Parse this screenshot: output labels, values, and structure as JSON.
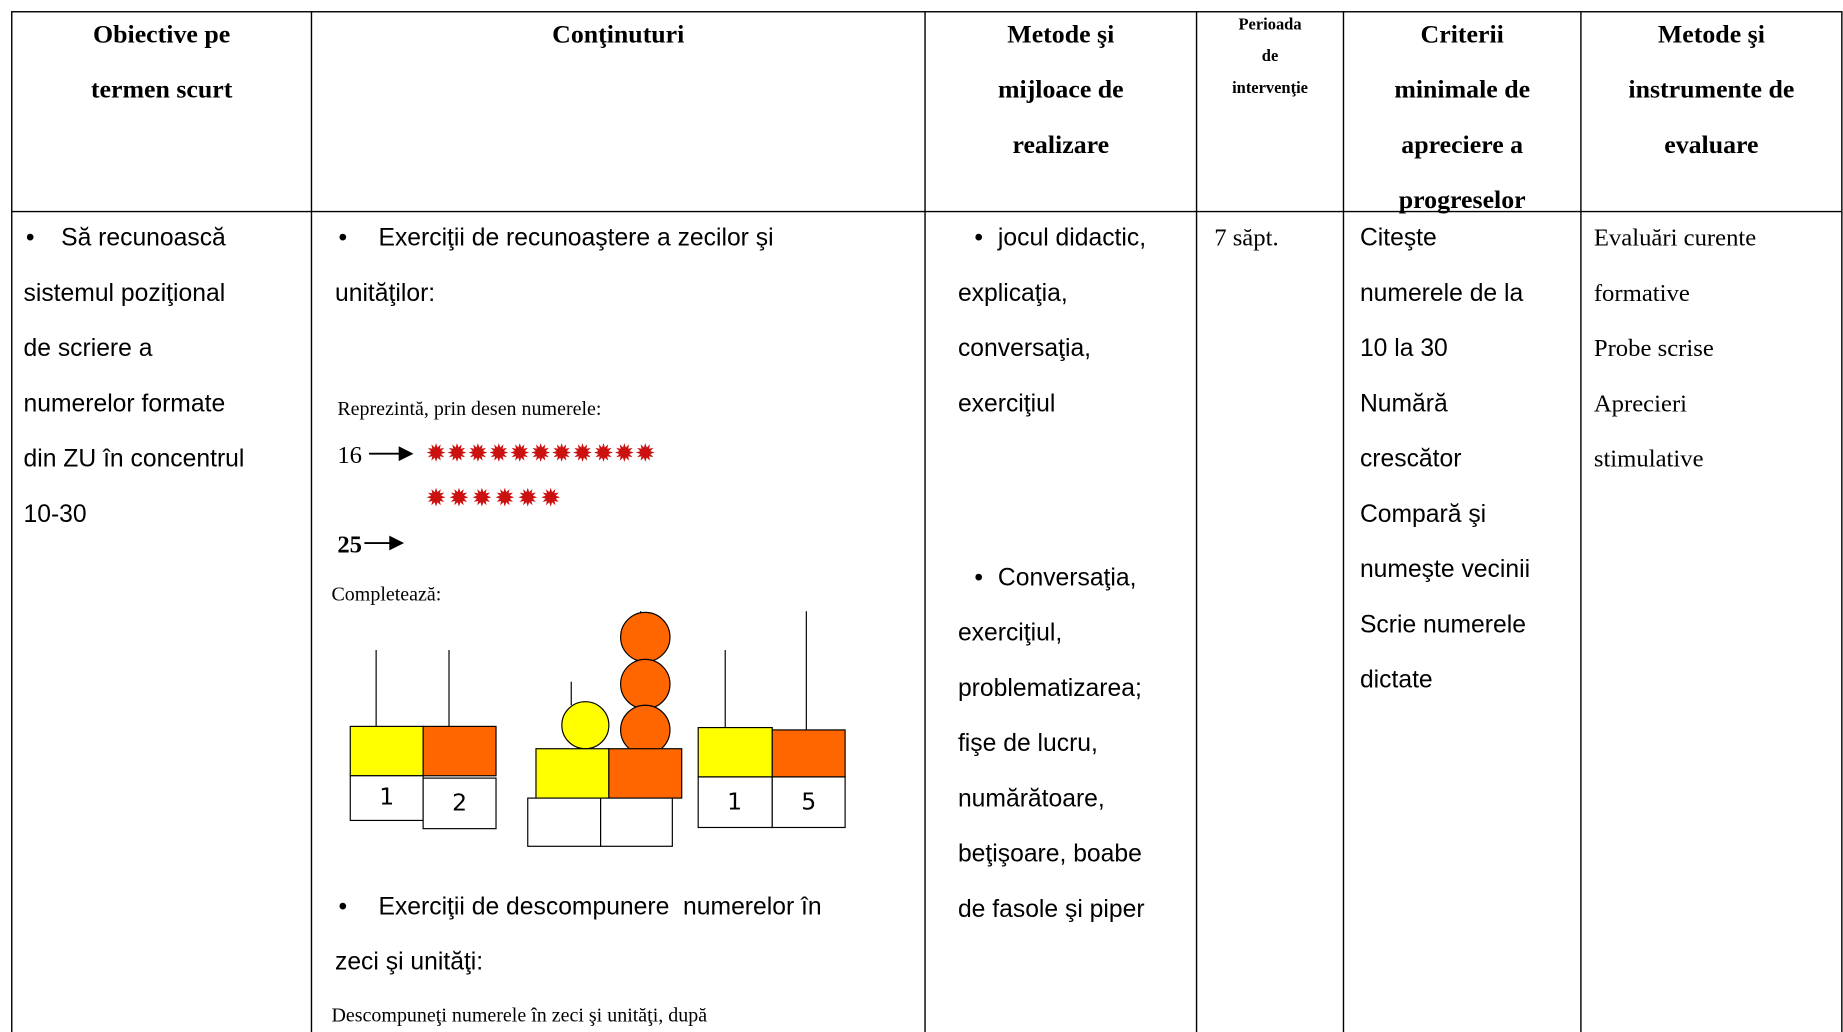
{
  "table": {
    "header": [
      [
        "Obiective pe",
        "termen scurt"
      ],
      [
        "Conţinuturi"
      ],
      [
        "Metode şi",
        "mijloace de",
        "realizare"
      ],
      [
        "Perioada",
        "de",
        "intervenţie"
      ],
      [
        "Criterii",
        "minimale de",
        "apreciere a",
        "progreselor"
      ],
      [
        "Metode şi",
        "instrumente de",
        "evaluare"
      ]
    ],
    "objective": [
      "Să recunoască",
      "sistemul poziţional",
      "de scriere a",
      "numerelor formate",
      "din ZU în concentrul",
      "10-30"
    ],
    "contents": {
      "exercise_1": [
        "Exerciţii de recunoaştere a zecilor şi",
        "unităţilor:"
      ],
      "instruction_1": "Reprezintă, prin desen numerele:",
      "number_1": "16",
      "number_2": "25",
      "instruction_2": "Completează:",
      "abacus_digits": [
        "1",
        "2",
        "1",
        "5"
      ],
      "exercise_2": [
        "Exerciţii de descompunere  numerelor în",
        "zeci şi unităţi:"
      ],
      "instruction_3": "Descompuneţi numerele în zeci şi unităţi, după"
    },
    "methods": [
      [
        "jocul didactic,",
        "explicaţia,",
        "conversaţia,",
        "exerciţiul"
      ],
      [
        "Conversaţia,",
        "exerciţiul,",
        "problematizarea;",
        "fişe de lucru,",
        "numărătoare,",
        "beţişoare, boabe",
        "de fasole şi piper"
      ]
    ],
    "period": "7 săpt.",
    "criteria": [
      "Citeşte",
      "numerele de la",
      "10 la 30",
      "Numără",
      "crescător",
      "Compară şi",
      "numeşte vecinii",
      "Scrie numerele",
      "dictate"
    ],
    "evaluation": [
      "Evaluări curente",
      "formative",
      "Probe scrise",
      "Aprecieri",
      "stimulative"
    ]
  }
}
